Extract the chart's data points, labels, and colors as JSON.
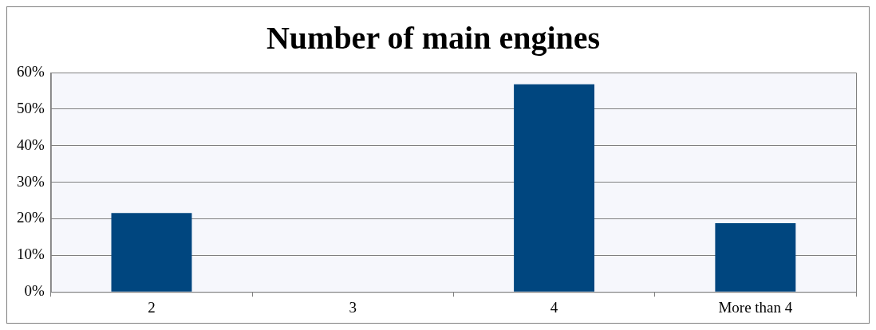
{
  "chart_data": {
    "type": "bar",
    "title": "Number of main engines",
    "categories": [
      "2",
      "3",
      "4",
      "More than 4"
    ],
    "values": [
      21.6,
      0,
      56.8,
      18.8
    ],
    "color": "#00467f",
    "ylim": [
      0,
      60
    ],
    "yticks": [
      {
        "value": 0,
        "label": "0%"
      },
      {
        "value": 10,
        "label": "10%"
      },
      {
        "value": 20,
        "label": "20%"
      },
      {
        "value": 30,
        "label": "30%"
      },
      {
        "value": 40,
        "label": "40%"
      },
      {
        "value": 50,
        "label": "50%"
      },
      {
        "value": 60,
        "label": "60%"
      }
    ],
    "grid": "y",
    "legend": false
  }
}
